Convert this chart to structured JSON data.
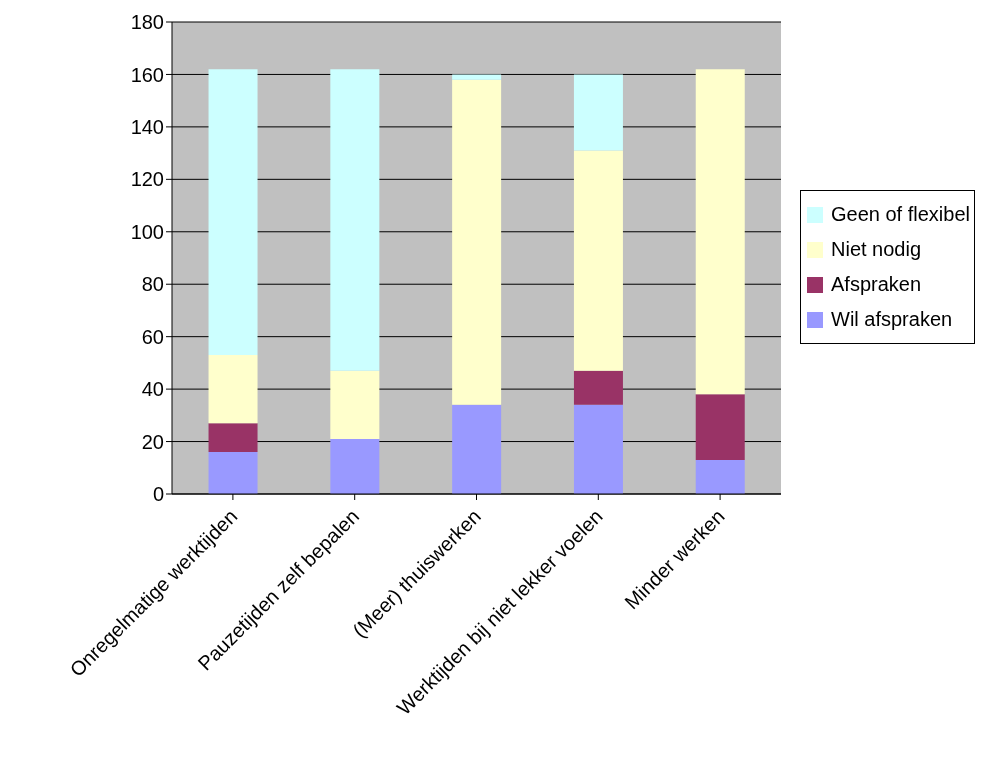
{
  "chart_data": {
    "type": "bar",
    "stacked": true,
    "categories": [
      "Onregelmatige werktijden",
      "Pauzetijden zelf bepalen",
      "(Meer) thuiswerken",
      "Werktijden bij niet lekker voelen",
      "Minder werken"
    ],
    "series": [
      {
        "name": "Wil afspraken",
        "color": "#9999ff",
        "values": [
          16,
          21,
          34,
          34,
          13
        ]
      },
      {
        "name": "Afspraken",
        "color": "#993366",
        "values": [
          11,
          0,
          0,
          13,
          25
        ]
      },
      {
        "name": "Niet nodig",
        "color": "#ffffcc",
        "values": [
          26,
          26,
          124,
          84,
          124
        ]
      },
      {
        "name": "Geen of flexibel",
        "color": "#ccffff",
        "values": [
          109,
          115,
          2,
          29,
          0
        ]
      }
    ],
    "ylim": [
      0,
      180
    ],
    "yticks": [
      0,
      20,
      40,
      60,
      80,
      100,
      120,
      140,
      160,
      180
    ],
    "grid": "y",
    "legend": "right"
  }
}
